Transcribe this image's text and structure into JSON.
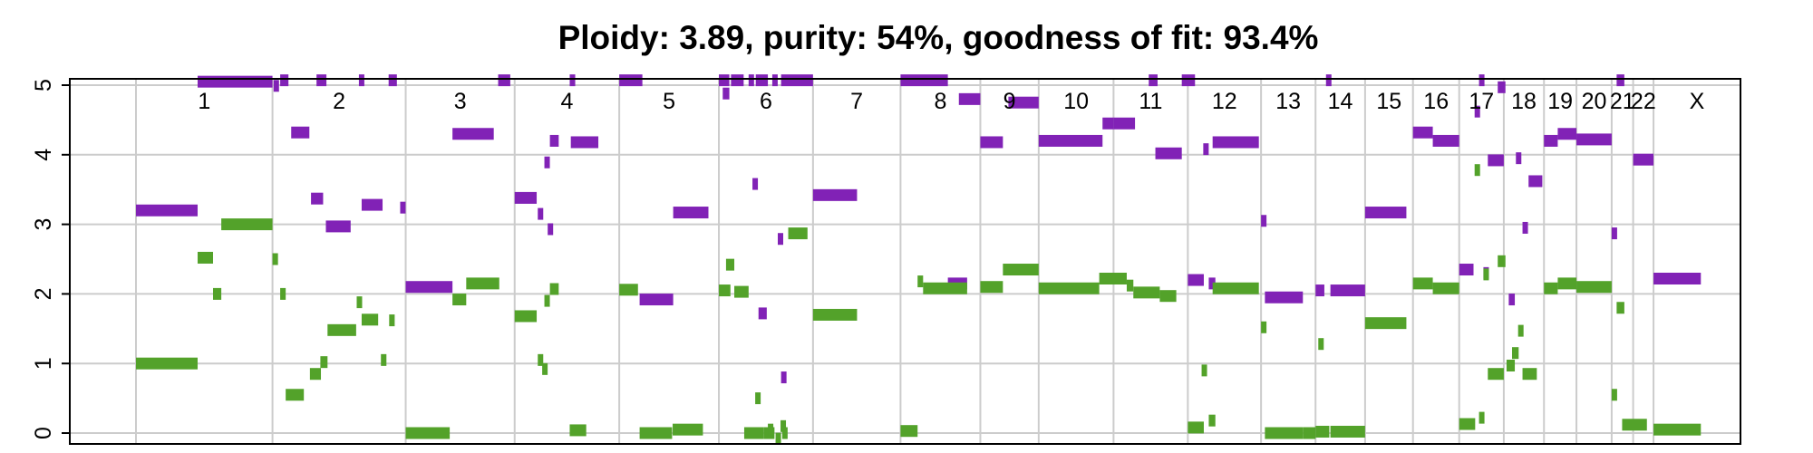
{
  "chart_data": {
    "type": "scatter",
    "title": "Ploidy: 3.89, purity: 54%, goodness of fit: 93.4%",
    "xlabel": "",
    "ylabel": "",
    "ylim": [
      0,
      5
    ],
    "yticks": [
      "0",
      "1",
      "2",
      "3",
      "4",
      "5"
    ],
    "grid": true,
    "colors": {
      "major": "#8122b6",
      "minor": "#53a22a",
      "grid": "#cccccc",
      "axis": "#000000"
    },
    "chromosomes": [
      {
        "label": "1",
        "start": 0,
        "end": 248
      },
      {
        "label": "2",
        "start": 248,
        "end": 490
      },
      {
        "label": "3",
        "start": 490,
        "end": 688
      },
      {
        "label": "4",
        "start": 688,
        "end": 878
      },
      {
        "label": "5",
        "start": 878,
        "end": 1059
      },
      {
        "label": "6",
        "start": 1059,
        "end": 1230
      },
      {
        "label": "7",
        "start": 1230,
        "end": 1389
      },
      {
        "label": "8",
        "start": 1389,
        "end": 1534
      },
      {
        "label": "9",
        "start": 1534,
        "end": 1640
      },
      {
        "label": "10",
        "start": 1640,
        "end": 1776
      },
      {
        "label": "11",
        "start": 1776,
        "end": 1911
      },
      {
        "label": "12",
        "start": 1911,
        "end": 2044
      },
      {
        "label": "13",
        "start": 2044,
        "end": 2143
      },
      {
        "label": "14",
        "start": 2143,
        "end": 2233
      },
      {
        "label": "15",
        "start": 2233,
        "end": 2320
      },
      {
        "label": "16",
        "start": 2320,
        "end": 2404
      },
      {
        "label": "17",
        "start": 2404,
        "end": 2485
      },
      {
        "label": "18",
        "start": 2485,
        "end": 2558
      },
      {
        "label": "19",
        "start": 2558,
        "end": 2617
      },
      {
        "label": "20",
        "start": 2617,
        "end": 2681
      },
      {
        "label": "21",
        "start": 2681,
        "end": 2720
      },
      {
        "label": "22",
        "start": 2720,
        "end": 2757
      },
      {
        "label": "X",
        "start": 2757,
        "end": 2915
      }
    ],
    "series": [
      {
        "role": "major",
        "segments": [
          [
            0,
            112,
            3.2
          ],
          [
            112,
            248,
            5.05
          ],
          [
            250,
            258,
            4.99
          ],
          [
            262,
            277,
            5.07
          ],
          [
            282,
            315,
            4.32
          ],
          [
            328,
            346,
            5.07
          ],
          [
            318,
            340,
            3.37
          ],
          [
            345,
            390,
            2.97
          ],
          [
            405,
            411,
            5.07
          ],
          [
            410,
            448,
            3.28
          ],
          [
            459,
            474,
            5.07
          ],
          [
            480,
            485,
            3.24
          ],
          [
            490,
            575,
            2.1
          ],
          [
            575,
            650,
            4.3
          ],
          [
            658,
            680,
            5.07
          ],
          [
            688,
            728,
            3.38
          ],
          [
            730,
            738,
            3.15
          ],
          [
            742,
            748,
            3.89
          ],
          [
            748,
            752,
            2.93
          ],
          [
            752,
            768,
            4.2
          ],
          [
            788,
            798,
            5.07
          ],
          [
            790,
            840,
            4.18
          ],
          [
            878,
            920,
            5.07
          ],
          [
            915,
            976,
            1.92
          ],
          [
            976,
            1040,
            3.17
          ],
          [
            1059,
            1078,
            5.07
          ],
          [
            1066,
            1078,
            4.88
          ],
          [
            1081,
            1104,
            5.07
          ],
          [
            1113,
            1117,
            5.07
          ],
          [
            1126,
            1148,
            5.07
          ],
          [
            1131,
            1146,
            1.72
          ],
          [
            1156,
            1165,
            5.07
          ],
          [
            1120,
            1125,
            3.58
          ],
          [
            1172,
            1179,
            0.8
          ],
          [
            1166,
            1172,
            2.79
          ],
          [
            1172,
            1230,
            5.07
          ],
          [
            1230,
            1310,
            3.42
          ],
          [
            1389,
            1475,
            5.07
          ],
          [
            1475,
            1510,
            2.15
          ],
          [
            1495,
            1534,
            4.8
          ],
          [
            1534,
            1575,
            4.18
          ],
          [
            1585,
            1640,
            4.75
          ],
          [
            1640,
            1756,
            4.2
          ],
          [
            1756,
            1776,
            4.45
          ],
          [
            1776,
            1815,
            4.45
          ],
          [
            1840,
            1856,
            5.07
          ],
          [
            1852,
            1900,
            4.02
          ],
          [
            1900,
            1924,
            5.07
          ],
          [
            1911,
            1940,
            2.2
          ],
          [
            1939,
            1944,
            4.08
          ],
          [
            1949,
            1961,
            2.15
          ],
          [
            1956,
            2040,
            4.18
          ],
          [
            2044,
            2048,
            3.05
          ],
          [
            2051,
            2120,
            1.95
          ],
          [
            2143,
            2159,
            2.05
          ],
          [
            2162,
            2168,
            5.07
          ],
          [
            2170,
            2233,
            2.05
          ],
          [
            2233,
            2308,
            3.17
          ],
          [
            2320,
            2356,
            4.32
          ],
          [
            2356,
            2404,
            4.2
          ],
          [
            2404,
            2430,
            2.35
          ],
          [
            2440,
            2444,
            5.07
          ],
          [
            2432,
            2440,
            4.62
          ],
          [
            2448,
            2456,
            2.3
          ],
          [
            2456,
            2485,
            3.92
          ],
          [
            2474,
            2488,
            4.97
          ],
          [
            2494,
            2505,
            1.92
          ],
          [
            2507,
            2512,
            3.95
          ],
          [
            2519,
            2525,
            2.95
          ],
          [
            2530,
            2555,
            3.62
          ],
          [
            2558,
            2583,
            4.2
          ],
          [
            2583,
            2617,
            4.3
          ],
          [
            2617,
            2681,
            4.22
          ],
          [
            2681,
            2689,
            2.87
          ],
          [
            2690,
            2704,
            5.07
          ],
          [
            2720,
            2757,
            3.93
          ],
          [
            2757,
            2843,
            2.22
          ]
        ]
      },
      {
        "role": "minor",
        "segments": [
          [
            0,
            112,
            1.0
          ],
          [
            112,
            140,
            2.52
          ],
          [
            140,
            155,
            2.0
          ],
          [
            155,
            248,
            3.0
          ],
          [
            248,
            258,
            2.5
          ],
          [
            262,
            272,
            2.0
          ],
          [
            272,
            305,
            0.55
          ],
          [
            316,
            336,
            0.85
          ],
          [
            335,
            348,
            1.02
          ],
          [
            348,
            400,
            1.48
          ],
          [
            401,
            406,
            1.88
          ],
          [
            410,
            440,
            1.63
          ],
          [
            445,
            455,
            1.05
          ],
          [
            460,
            470,
            1.62
          ],
          [
            490,
            570,
            0.0
          ],
          [
            575,
            600,
            1.92
          ],
          [
            600,
            660,
            2.15
          ],
          [
            688,
            728,
            1.68
          ],
          [
            730,
            738,
            1.05
          ],
          [
            738,
            746,
            0.92
          ],
          [
            742,
            748,
            1.9
          ],
          [
            752,
            768,
            2.07
          ],
          [
            788,
            818,
            0.04
          ],
          [
            878,
            912,
            2.06
          ],
          [
            915,
            974,
            0.0
          ],
          [
            975,
            1030,
            0.05
          ],
          [
            1059,
            1080,
            2.05
          ],
          [
            1072,
            1087,
            2.42
          ],
          [
            1087,
            1113,
            2.03
          ],
          [
            1105,
            1140,
            0.0
          ],
          [
            1125,
            1130,
            0.5
          ],
          [
            1140,
            1160,
            0.0
          ],
          [
            1148,
            1153,
            0.05
          ],
          [
            1162,
            1168,
            -0.08
          ],
          [
            1171,
            1175,
            0.1
          ],
          [
            1174,
            1180,
            0.0
          ],
          [
            1185,
            1220,
            2.87
          ],
          [
            1230,
            1310,
            1.7
          ],
          [
            1389,
            1420,
            0.03
          ],
          [
            1420,
            1430,
            2.18
          ],
          [
            1430,
            1510,
            2.08
          ],
          [
            1534,
            1575,
            2.1
          ],
          [
            1575,
            1640,
            2.35
          ],
          [
            1640,
            1750,
            2.08
          ],
          [
            1750,
            1800,
            2.22
          ],
          [
            1800,
            1812,
            2.12
          ],
          [
            1812,
            1860,
            2.02
          ],
          [
            1860,
            1890,
            1.97
          ],
          [
            1911,
            1940,
            0.08
          ],
          [
            1936,
            1940,
            0.9
          ],
          [
            1949,
            1961,
            0.18
          ],
          [
            1956,
            2040,
            2.08
          ],
          [
            2044,
            2048,
            1.52
          ],
          [
            2051,
            2120,
            0.0
          ],
          [
            2120,
            2143,
            0.0
          ],
          [
            2143,
            2168,
            0.02
          ],
          [
            2148,
            2152,
            1.28
          ],
          [
            2170,
            2233,
            0.02
          ],
          [
            2233,
            2308,
            1.58
          ],
          [
            2320,
            2356,
            2.15
          ],
          [
            2356,
            2404,
            2.08
          ],
          [
            2404,
            2433,
            0.13
          ],
          [
            2440,
            2444,
            0.22
          ],
          [
            2432,
            2440,
            3.78
          ],
          [
            2448,
            2456,
            2.28
          ],
          [
            2456,
            2485,
            0.85
          ],
          [
            2474,
            2488,
            2.47
          ],
          [
            2490,
            2505,
            0.97
          ],
          [
            2500,
            2512,
            1.15
          ],
          [
            2511,
            2520,
            1.47
          ],
          [
            2519,
            2545,
            0.85
          ],
          [
            2558,
            2583,
            2.08
          ],
          [
            2583,
            2617,
            2.15
          ],
          [
            2617,
            2681,
            2.1
          ],
          [
            2681,
            2689,
            0.55
          ],
          [
            2690,
            2704,
            1.8
          ],
          [
            2700,
            2745,
            0.12
          ],
          [
            2757,
            2843,
            0.05
          ]
        ]
      }
    ]
  }
}
